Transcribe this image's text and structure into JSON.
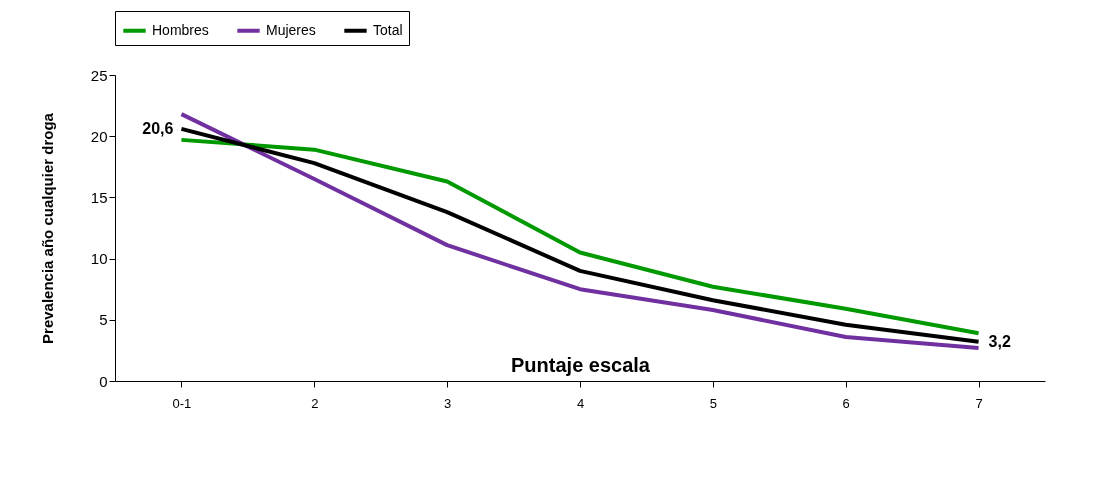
{
  "chart_data": {
    "type": "line",
    "xlabel": "Puntaje escala",
    "ylabel": "Prevalencia  año cualquier droga",
    "categories": [
      "0-1",
      "2",
      "3",
      "4",
      "5",
      "6",
      "7"
    ],
    "series": [
      {
        "name": "Hombres",
        "color": "#009900",
        "values": [
          19.7,
          18.9,
          16.3,
          10.5,
          7.7,
          5.9,
          3.9
        ]
      },
      {
        "name": "Mujeres",
        "color": "#7030a0",
        "values": [
          21.8,
          16.5,
          11.1,
          7.5,
          5.8,
          3.6,
          2.7
        ]
      },
      {
        "name": "Total",
        "color": "#000000",
        "values": [
          20.6,
          17.8,
          13.8,
          9.0,
          6.6,
          4.6,
          3.2
        ],
        "value_labels": [
          "20,6",
          null,
          null,
          null,
          null,
          null,
          "3,2"
        ]
      }
    ],
    "ylim": [
      0,
      25
    ],
    "yticks": [
      0,
      5,
      10,
      15,
      20,
      25
    ],
    "grid": false,
    "legend": "top",
    "marker": "none",
    "line_style": "solid"
  }
}
